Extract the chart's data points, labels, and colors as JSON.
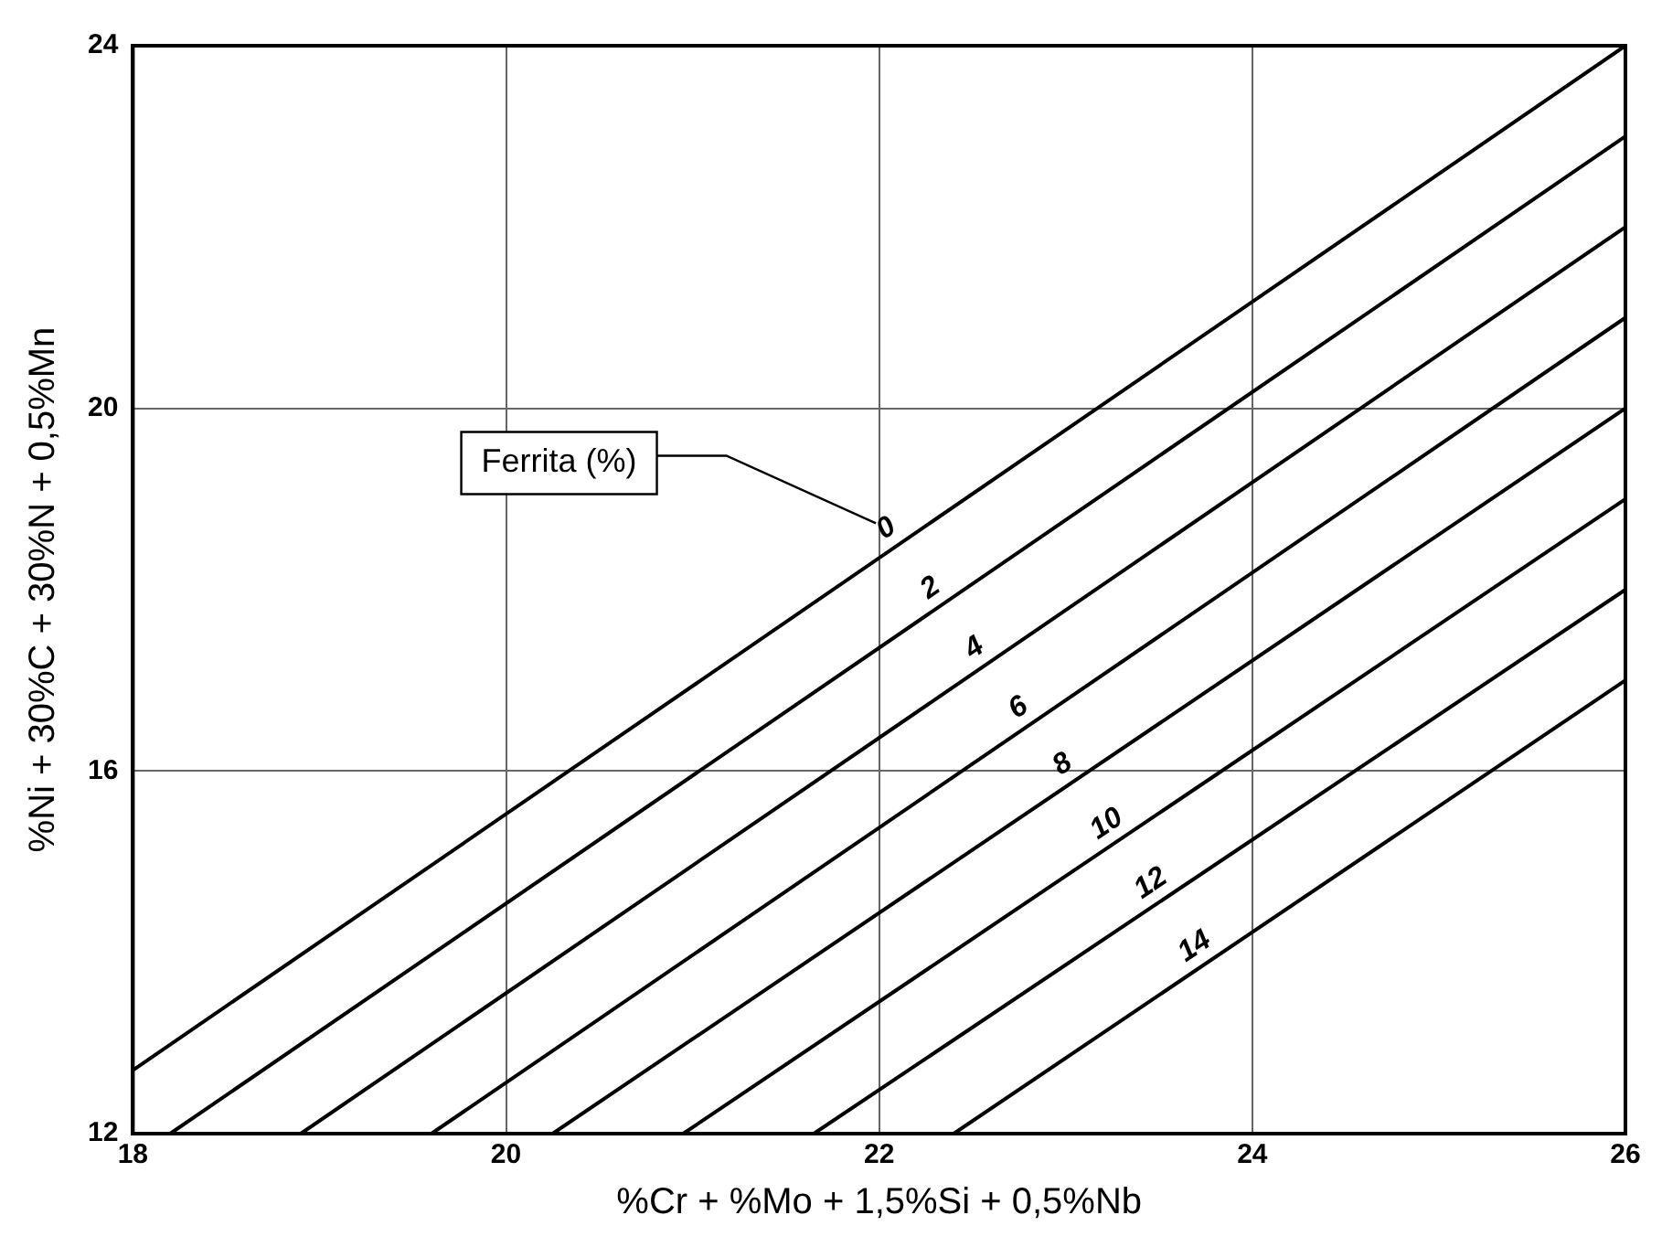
{
  "chart_data": {
    "type": "line",
    "xlabel": "%Cr + %Mo + 1,5%Si + 0,5%Nb",
    "ylabel": "%Ni + 30%C + 30%N + 0,5%Mn",
    "annotations": [
      "Ferrita (%)"
    ],
    "series": [
      {
        "name": "0",
        "color": "#000000",
        "x": [
          18,
          26
        ],
        "values": [
          12.7,
          24
        ]
      },
      {
        "name": "2",
        "color": "#000000",
        "x": [
          18.2,
          26
        ],
        "values": [
          12,
          23
        ]
      },
      {
        "name": "4",
        "color": "#000000",
        "x": [
          18.9,
          26
        ],
        "values": [
          12,
          22
        ]
      },
      {
        "name": "6",
        "color": "#000000",
        "x": [
          19.6,
          26
        ],
        "values": [
          12,
          21
        ]
      },
      {
        "name": "8",
        "color": "#000000",
        "x": [
          20.25,
          26
        ],
        "values": [
          12,
          20
        ]
      },
      {
        "name": "10",
        "color": "#000000",
        "x": [
          20.95,
          26
        ],
        "values": [
          12,
          19
        ]
      },
      {
        "name": "12",
        "color": "#000000",
        "x": [
          21.65,
          26
        ],
        "values": [
          12,
          18
        ]
      },
      {
        "name": "14",
        "color": "#000000",
        "x": [
          22.4,
          26
        ],
        "values": [
          12,
          17
        ]
      }
    ],
    "xlim": [
      18,
      26
    ],
    "xticks": [
      18,
      20,
      22,
      24,
      26
    ],
    "ylim": [
      12,
      24
    ],
    "yticks": [
      12,
      16,
      20,
      24
    ],
    "grid": true,
    "legend": false,
    "marker": "none",
    "line_style": "solid"
  }
}
